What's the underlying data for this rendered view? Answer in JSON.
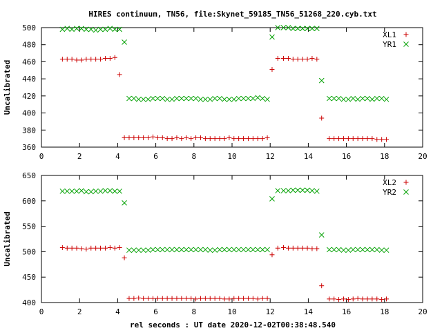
{
  "chart_title": "HIRES continuum, TN56, file:Skynet_59185_TN56_51268_220.cyb.txt",
  "x_axis_label": "rel seconds : UT date 2020-12-02T00:38:48.540",
  "colors": {
    "red": "#cc0000",
    "green": "#00a000"
  },
  "chart_data": [
    {
      "type": "scatter",
      "ylabel": "Uncalibrated",
      "xlim": [
        0,
        20
      ],
      "ylim": [
        360,
        500
      ],
      "x_ticks": [
        "0",
        "2",
        "4",
        "6",
        "8",
        "10",
        "12",
        "14",
        "16",
        "18",
        "20"
      ],
      "y_ticks": [
        "360",
        "380",
        "400",
        "420",
        "440",
        "460",
        "480",
        "500"
      ],
      "legend_position": "top-right",
      "series": [
        {
          "name": "XL1",
          "marker": "plus",
          "color": "#cc0000",
          "x": [
            1.1,
            1.35,
            1.6,
            1.85,
            2.1,
            2.35,
            2.6,
            2.85,
            3.1,
            3.35,
            3.6,
            3.85,
            4.1,
            4.35,
            4.6,
            4.85,
            5.1,
            5.35,
            5.6,
            5.85,
            6.1,
            6.35,
            6.6,
            6.85,
            7.1,
            7.35,
            7.6,
            7.85,
            8.1,
            8.35,
            8.6,
            8.85,
            9.1,
            9.35,
            9.6,
            9.85,
            10.1,
            10.35,
            10.6,
            10.85,
            11.1,
            11.35,
            11.6,
            11.85,
            12.1,
            12.4,
            12.7,
            12.95,
            13.2,
            13.45,
            13.7,
            13.95,
            14.2,
            14.45,
            14.7,
            15.1,
            15.35,
            15.6,
            15.85,
            16.1,
            16.35,
            16.6,
            16.85,
            17.1,
            17.35,
            17.6,
            17.85,
            18.1
          ],
          "y": [
            463,
            463,
            463,
            462,
            462,
            463,
            463,
            463,
            463,
            464,
            464,
            465,
            445,
            371,
            371,
            371,
            371,
            371,
            371,
            372,
            371,
            371,
            370,
            370,
            371,
            370,
            371,
            370,
            371,
            371,
            370,
            370,
            370,
            370,
            370,
            371,
            370,
            370,
            370,
            370,
            370,
            370,
            370,
            371,
            451,
            464,
            464,
            464,
            463,
            463,
            463,
            463,
            464,
            463,
            394,
            370,
            370,
            370,
            370,
            370,
            370,
            370,
            370,
            370,
            370,
            369,
            369,
            369
          ]
        },
        {
          "name": "YR1",
          "marker": "cross",
          "color": "#00a000",
          "x": [
            1.1,
            1.35,
            1.6,
            1.85,
            2.1,
            2.35,
            2.6,
            2.85,
            3.1,
            3.35,
            3.6,
            3.85,
            4.1,
            4.35,
            4.6,
            4.85,
            5.1,
            5.35,
            5.6,
            5.85,
            6.1,
            6.35,
            6.6,
            6.85,
            7.1,
            7.35,
            7.6,
            7.85,
            8.1,
            8.35,
            8.6,
            8.85,
            9.1,
            9.35,
            9.6,
            9.85,
            10.1,
            10.35,
            10.6,
            10.85,
            11.1,
            11.35,
            11.6,
            11.85,
            12.1,
            12.4,
            12.7,
            12.95,
            13.2,
            13.45,
            13.7,
            13.95,
            14.2,
            14.45,
            14.7,
            15.1,
            15.35,
            15.6,
            15.85,
            16.1,
            16.35,
            16.6,
            16.85,
            17.1,
            17.35,
            17.6,
            17.85,
            18.1
          ],
          "y": [
            498,
            499,
            498,
            499,
            499,
            498,
            498,
            497,
            498,
            498,
            499,
            498,
            498,
            483,
            417,
            417,
            416,
            416,
            416,
            417,
            417,
            417,
            416,
            416,
            417,
            417,
            417,
            417,
            417,
            416,
            416,
            416,
            417,
            417,
            416,
            416,
            416,
            417,
            417,
            417,
            417,
            418,
            417,
            416,
            489,
            500,
            500,
            500,
            499,
            499,
            499,
            499,
            499,
            499,
            438,
            417,
            417,
            417,
            416,
            416,
            417,
            416,
            417,
            417,
            416,
            417,
            417,
            416
          ]
        }
      ]
    },
    {
      "type": "scatter",
      "ylabel": "Uncalibrated",
      "xlim": [
        0,
        20
      ],
      "ylim": [
        400,
        650
      ],
      "x_ticks": [
        "0",
        "2",
        "4",
        "6",
        "8",
        "10",
        "12",
        "14",
        "16",
        "18",
        "20"
      ],
      "y_ticks": [
        "400",
        "450",
        "500",
        "550",
        "600",
        "650"
      ],
      "legend_position": "top-right",
      "series": [
        {
          "name": "XL2",
          "marker": "plus",
          "color": "#cc0000",
          "x": [
            1.1,
            1.35,
            1.6,
            1.85,
            2.1,
            2.35,
            2.6,
            2.85,
            3.1,
            3.35,
            3.6,
            3.85,
            4.1,
            4.35,
            4.6,
            4.85,
            5.1,
            5.35,
            5.6,
            5.85,
            6.1,
            6.35,
            6.6,
            6.85,
            7.1,
            7.35,
            7.6,
            7.85,
            8.1,
            8.35,
            8.6,
            8.85,
            9.1,
            9.35,
            9.6,
            9.85,
            10.1,
            10.35,
            10.6,
            10.85,
            11.1,
            11.35,
            11.6,
            11.85,
            12.1,
            12.4,
            12.7,
            12.95,
            13.2,
            13.45,
            13.7,
            13.95,
            14.2,
            14.45,
            14.7,
            15.1,
            15.35,
            15.6,
            15.85,
            16.1,
            16.35,
            16.6,
            16.85,
            17.1,
            17.35,
            17.6,
            17.85,
            18.1
          ],
          "y": [
            508,
            507,
            507,
            507,
            506,
            505,
            507,
            507,
            507,
            507,
            508,
            507,
            508,
            488,
            408,
            408,
            409,
            408,
            408,
            408,
            408,
            408,
            408,
            408,
            408,
            408,
            408,
            408,
            407,
            408,
            408,
            408,
            408,
            408,
            407,
            407,
            408,
            408,
            408,
            408,
            408,
            407,
            408,
            408,
            494,
            507,
            508,
            507,
            507,
            507,
            507,
            507,
            506,
            506,
            433,
            407,
            407,
            406,
            407,
            406,
            407,
            408,
            407,
            407,
            407,
            407,
            406,
            407
          ]
        },
        {
          "name": "YR2",
          "marker": "cross",
          "color": "#00a000",
          "x": [
            1.1,
            1.35,
            1.6,
            1.85,
            2.1,
            2.35,
            2.6,
            2.85,
            3.1,
            3.35,
            3.6,
            3.85,
            4.1,
            4.35,
            4.6,
            4.85,
            5.1,
            5.35,
            5.6,
            5.85,
            6.1,
            6.35,
            6.6,
            6.85,
            7.1,
            7.35,
            7.6,
            7.85,
            8.1,
            8.35,
            8.6,
            8.85,
            9.1,
            9.35,
            9.6,
            9.85,
            10.1,
            10.35,
            10.6,
            10.85,
            11.1,
            11.35,
            11.6,
            11.85,
            12.1,
            12.4,
            12.7,
            12.95,
            13.2,
            13.45,
            13.7,
            13.95,
            14.2,
            14.45,
            14.7,
            15.1,
            15.35,
            15.6,
            15.85,
            16.1,
            16.35,
            16.6,
            16.85,
            17.1,
            17.35,
            17.6,
            17.85,
            18.1
          ],
          "y": [
            619,
            619,
            619,
            619,
            620,
            618,
            618,
            619,
            619,
            620,
            620,
            619,
            619,
            596,
            503,
            503,
            503,
            503,
            503,
            504,
            504,
            504,
            504,
            504,
            504,
            504,
            504,
            504,
            504,
            504,
            504,
            503,
            503,
            504,
            504,
            504,
            504,
            504,
            504,
            504,
            504,
            504,
            504,
            504,
            604,
            620,
            620,
            620,
            621,
            621,
            621,
            621,
            620,
            619,
            533,
            504,
            504,
            504,
            503,
            503,
            504,
            504,
            504,
            504,
            504,
            504,
            503,
            503
          ]
        }
      ]
    }
  ]
}
